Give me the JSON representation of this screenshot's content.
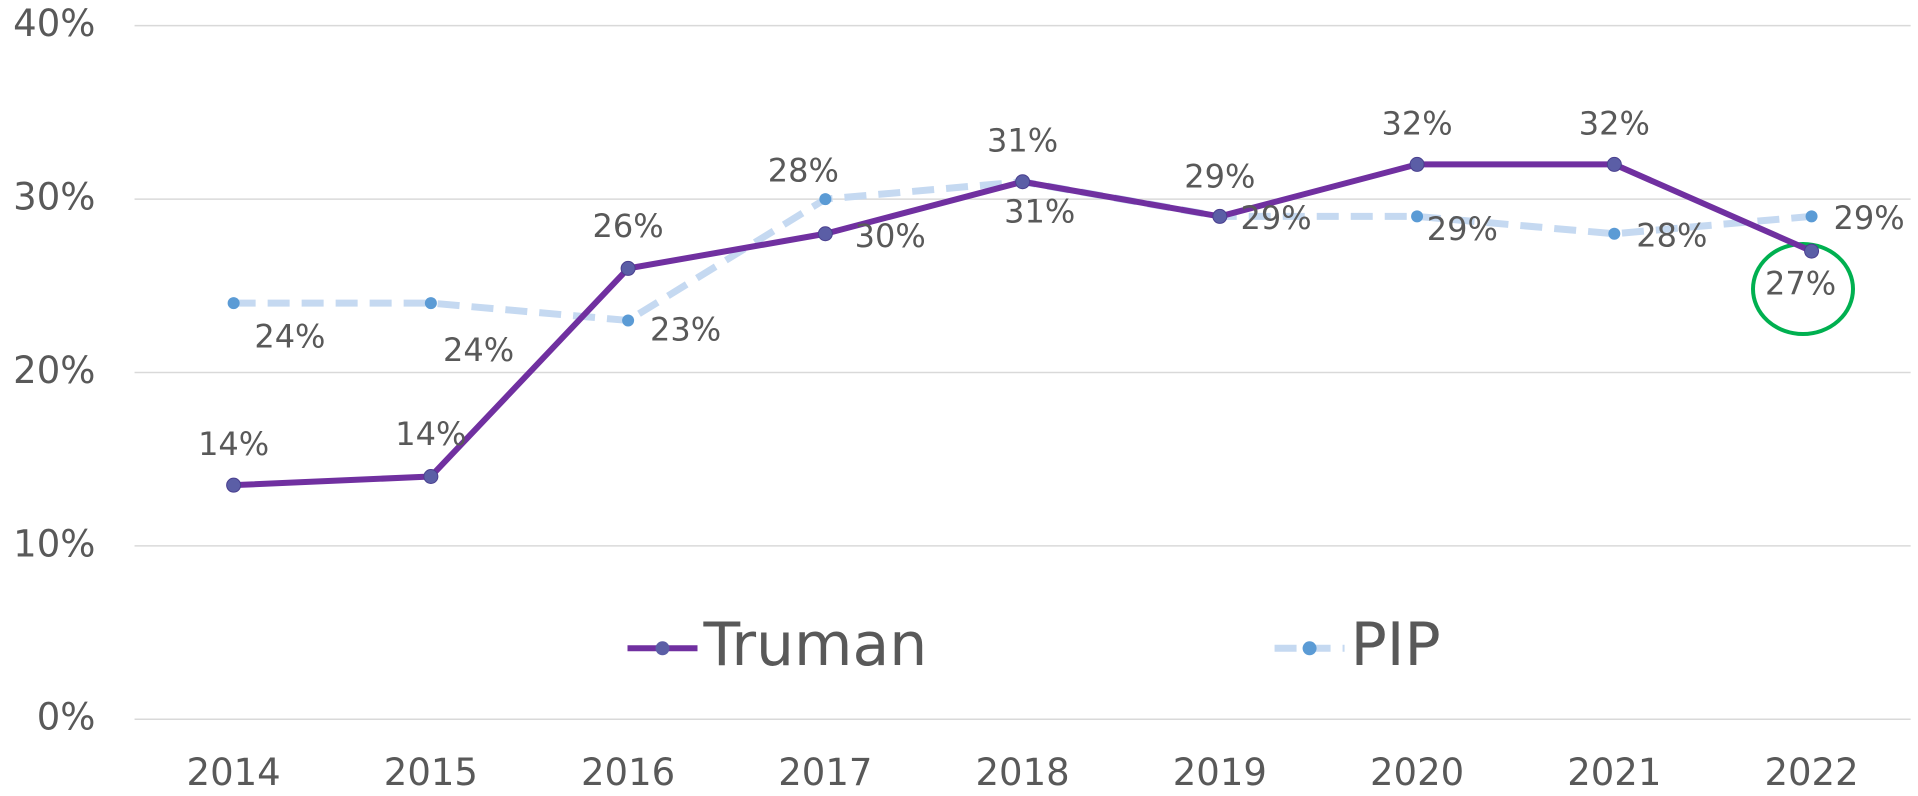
{
  "chart_data": {
    "type": "line",
    "categories": [
      "2014",
      "2015",
      "2016",
      "2017",
      "2018",
      "2019",
      "2020",
      "2021",
      "2022"
    ],
    "series": [
      {
        "name": "Truman",
        "color": "#7030a0",
        "marker_color": "#5b5ea6",
        "dashed": false,
        "values": [
          13.5,
          14,
          26,
          28,
          31,
          29,
          32,
          32,
          27
        ],
        "value_labels": [
          "14%",
          "14%",
          "26%",
          "28%",
          "31%",
          "29%",
          "32%",
          "32%",
          "27%"
        ]
      },
      {
        "name": "PIP",
        "color": "#c5d9f1",
        "marker_color": "#5b9bd5",
        "dashed": true,
        "values": [
          24,
          24,
          23,
          30,
          31,
          29,
          29,
          28,
          29
        ],
        "value_labels": [
          "24%",
          "24%",
          "23%",
          "30%",
          "31%",
          "29%",
          "29%",
          "28%",
          "29%"
        ]
      }
    ],
    "ylim": [
      0,
      40
    ],
    "yticks": [
      {
        "value": 0,
        "label": "0%"
      },
      {
        "value": 10,
        "label": "10%"
      },
      {
        "value": 20,
        "label": "20%"
      },
      {
        "value": 30,
        "label": "30%"
      },
      {
        "value": 40,
        "label": "40%"
      }
    ],
    "grid": true,
    "legend": "bottom"
  }
}
